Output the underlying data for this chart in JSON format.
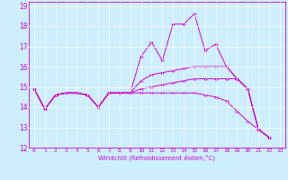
{
  "title": "",
  "xlabel": "Windchill (Refroidissement éolien,°C)",
  "bg_color": "#cceeff",
  "line_color": "#cc00cc",
  "xlim": [
    -0.5,
    23.5
  ],
  "ylim": [
    12,
    19.2
  ],
  "xticks": [
    0,
    1,
    2,
    3,
    4,
    5,
    6,
    7,
    8,
    9,
    10,
    11,
    12,
    13,
    14,
    15,
    16,
    17,
    18,
    19,
    20,
    21,
    22,
    23
  ],
  "yticks": [
    12,
    13,
    14,
    15,
    16,
    17,
    18,
    19
  ],
  "lines": [
    [
      14.9,
      13.9,
      14.6,
      14.7,
      14.7,
      14.6,
      14.0,
      14.7,
      14.7,
      14.7,
      16.5,
      17.2,
      16.3,
      18.1,
      18.1,
      18.6,
      16.8,
      17.1,
      16.0,
      15.4,
      14.9,
      12.9,
      12.5
    ],
    [
      14.9,
      13.9,
      14.6,
      14.7,
      14.7,
      14.6,
      14.0,
      14.7,
      14.7,
      14.7,
      15.3,
      15.6,
      15.7,
      15.8,
      15.9,
      16.0,
      16.0,
      16.0,
      16.0,
      15.4,
      14.9,
      12.9,
      12.5
    ],
    [
      14.9,
      13.9,
      14.6,
      14.7,
      14.7,
      14.6,
      14.0,
      14.7,
      14.7,
      14.7,
      14.9,
      15.0,
      15.1,
      15.2,
      15.3,
      15.4,
      15.4,
      15.4,
      15.4,
      15.4,
      14.9,
      12.9,
      12.5
    ],
    [
      14.9,
      13.9,
      14.6,
      14.7,
      14.7,
      14.6,
      14.0,
      14.7,
      14.7,
      14.7,
      14.7,
      14.7,
      14.7,
      14.7,
      14.7,
      14.7,
      14.6,
      14.5,
      14.3,
      13.8,
      13.3,
      12.9,
      12.5
    ]
  ],
  "x_values": [
    0,
    1,
    2,
    3,
    4,
    5,
    6,
    7,
    8,
    9,
    10,
    11,
    12,
    13,
    14,
    15,
    16,
    17,
    18,
    19,
    20,
    21,
    22
  ]
}
